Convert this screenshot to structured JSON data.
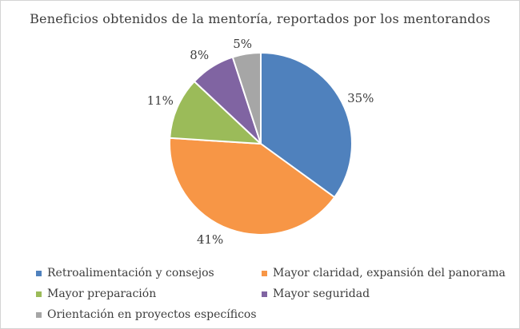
{
  "window": {
    "background": "#ffffff",
    "border_color": "#d4d4d4",
    "text_color": "#3d3d3d"
  },
  "chart_data": {
    "type": "pie",
    "title": "Beneficios obtenidos de la mentoría, reportados por los mentorandos",
    "categories": [
      "Retroalimentación y consejos",
      "Mayor claridad, expansión del panorama",
      "Mayor preparación",
      "Mayor seguridad",
      "Orientación en proyectos específicos"
    ],
    "values": [
      35,
      41,
      11,
      8,
      5
    ],
    "unit": "%",
    "data_labels": [
      "35%",
      "41%",
      "11%",
      "8%",
      "5%"
    ],
    "colors": [
      "#4F81BD",
      "#F79646",
      "#9BBB59",
      "#8064A2",
      "#A6A6A6"
    ],
    "start_angle_deg": 0,
    "direction": "clockwise",
    "slice_separator_color": "#FFFFFF",
    "legend_position": "bottom",
    "legend_columns": 2,
    "grid": false
  }
}
